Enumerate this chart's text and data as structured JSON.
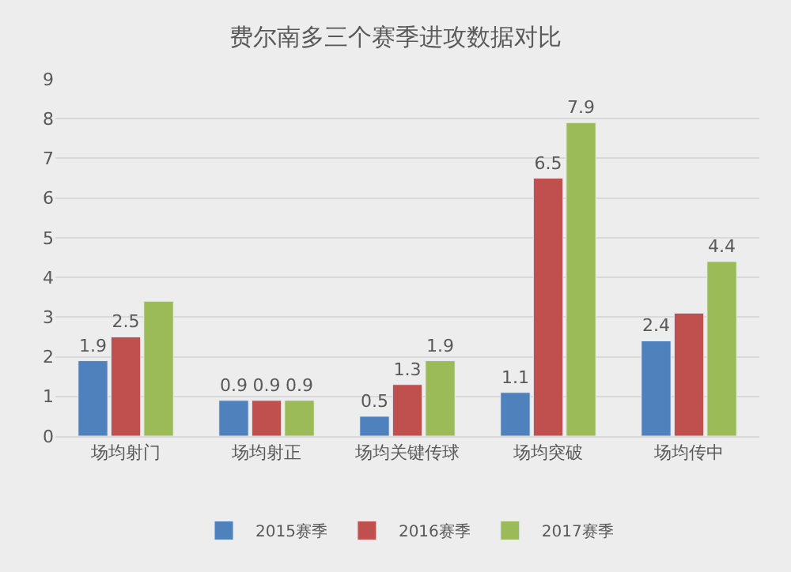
{
  "chart_data": {
    "type": "bar",
    "title": "费尔南多三个赛季进攻数据对比",
    "categories": [
      "场均射门",
      "场均射正",
      "场均关键传球",
      "场均突破",
      "场均传中"
    ],
    "series": [
      {
        "name": "2015赛季",
        "color": "#4f81bd",
        "values": [
          1.9,
          0.9,
          0.5,
          1.1,
          2.4
        ],
        "value_labels": [
          "1.9",
          "0.9",
          "0.5",
          "1.1",
          "2.4"
        ]
      },
      {
        "name": "2016赛季",
        "color": "#c0504d",
        "values": [
          2.5,
          0.9,
          1.3,
          6.5,
          3.1
        ],
        "value_labels": [
          "2.5",
          "0.9",
          "1.3",
          "6.5",
          null
        ]
      },
      {
        "name": "2017赛季",
        "color": "#9bbb59",
        "values": [
          3.4,
          0.9,
          1.9,
          7.9,
          4.4
        ],
        "value_labels": [
          null,
          "0.9",
          "1.9",
          "7.9",
          "4.4"
        ]
      }
    ],
    "ylim": [
      0,
      9
    ],
    "yticks": [
      0,
      1,
      2,
      3,
      4,
      5,
      6,
      7,
      8,
      9
    ],
    "grid": "y",
    "legend": "bottom"
  }
}
